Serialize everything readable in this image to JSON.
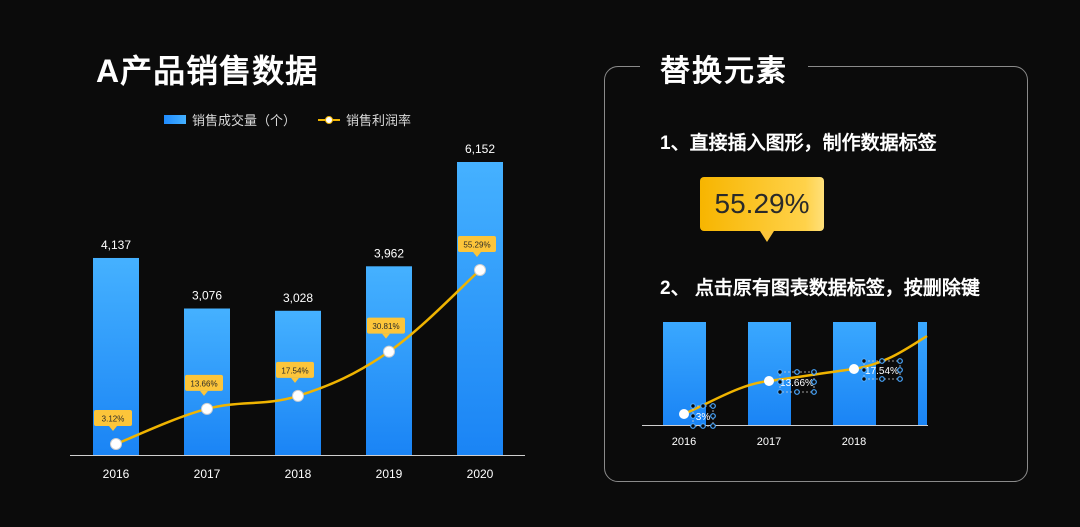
{
  "left_title": "A产品销售数据",
  "legend": {
    "bar_label": "销售成交量（个）",
    "line_label": "销售利润率"
  },
  "chart_data": {
    "type": "bar",
    "categories": [
      "2016",
      "2017",
      "2018",
      "2019",
      "2020"
    ],
    "series": [
      {
        "name": "销售成交量（个）",
        "type": "bar",
        "values": [
          4137,
          3076,
          3028,
          3962,
          6152
        ],
        "labels": [
          "4,137",
          "3,076",
          "3,028",
          "3,962",
          "6,152"
        ]
      },
      {
        "name": "销售利润率",
        "type": "line",
        "values": [
          3.12,
          13.66,
          17.54,
          30.81,
          55.29
        ],
        "labels": [
          "3.12%",
          "13.66%",
          "17.54%",
          "30.81%",
          "55.29%"
        ]
      }
    ],
    "grid": false,
    "legend_position": "top",
    "colors": {
      "bar": "#1f8bff",
      "bar_light": "#4ab4ff",
      "line": "#f0b400",
      "label_bg": "#fcc53a"
    }
  },
  "panel": {
    "title": "替换元素",
    "step1": "1、直接插入图形，制作数据标签",
    "callout_value": "55.29%",
    "step2": "2、 点击原有图表数据标签，按删除键",
    "mini_categories": [
      "2016",
      "2017",
      "2018"
    ],
    "mini_labels": [
      "3%",
      "13.66%",
      "17.54%"
    ]
  }
}
